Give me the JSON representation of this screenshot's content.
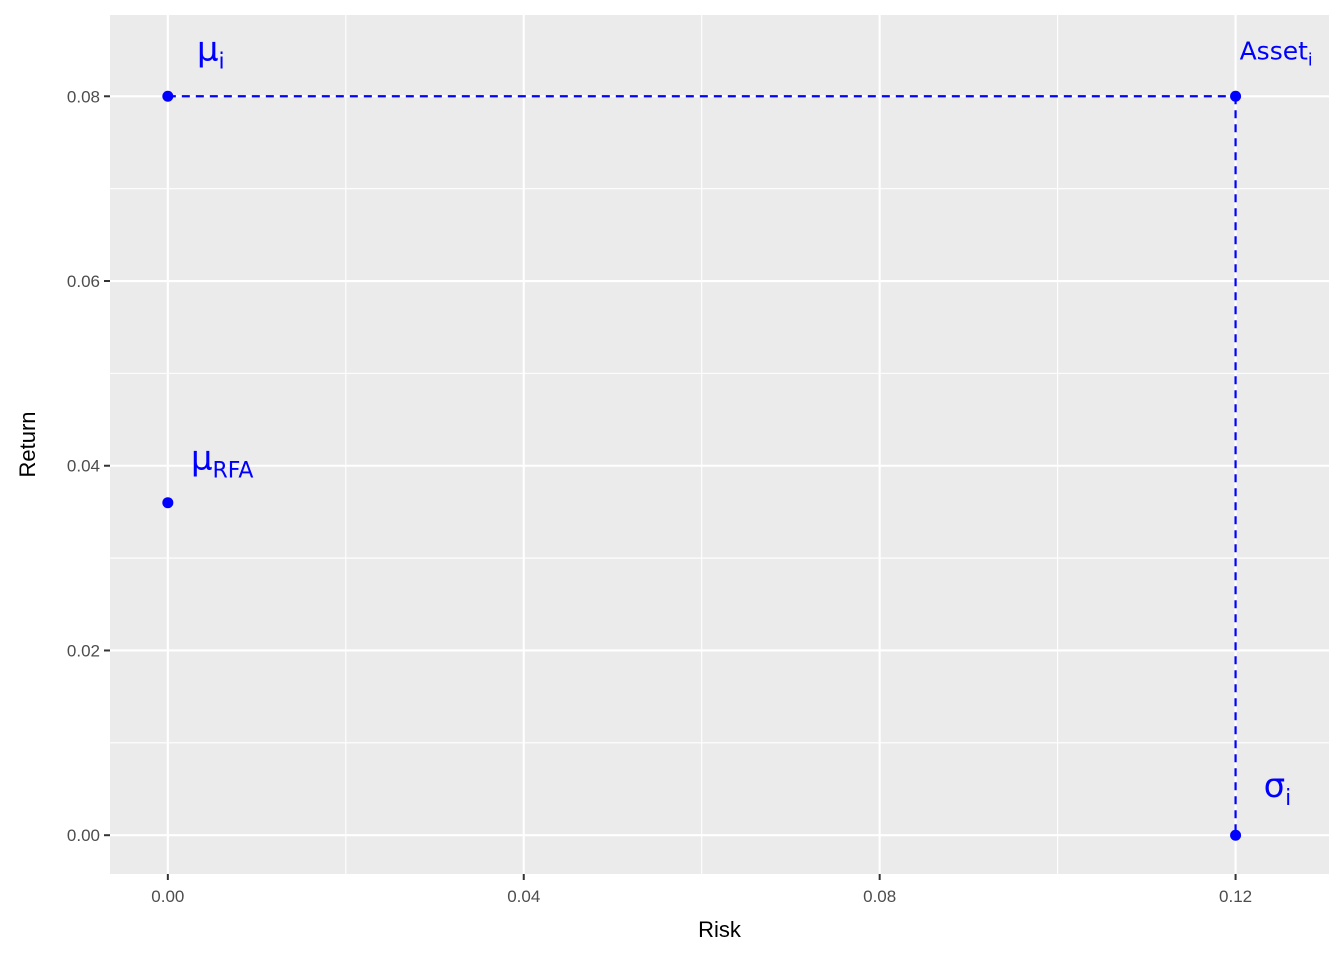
{
  "chart_data": {
    "type": "scatter",
    "xlabel": "Risk",
    "ylabel": "Return",
    "xlim": [
      -0.0065,
      0.1305
    ],
    "ylim": [
      -0.0042,
      0.0888
    ],
    "x_ticks": [
      0.0,
      0.04,
      0.08,
      0.12
    ],
    "x_tick_labels": [
      "0.00",
      "0.04",
      "0.08",
      "0.12"
    ],
    "y_ticks": [
      0.0,
      0.02,
      0.04,
      0.06,
      0.08
    ],
    "y_tick_labels": [
      "0.00",
      "0.02",
      "0.04",
      "0.06",
      "0.08"
    ],
    "grid": true,
    "color": "#0000ff",
    "background": "#ebebeb",
    "points": [
      {
        "x": 0.0,
        "y": 0.08,
        "label_base": "μ",
        "label_sub": "i"
      },
      {
        "x": 0.0,
        "y": 0.036,
        "label_base": "μ",
        "label_sub": "RFA"
      },
      {
        "x": 0.12,
        "y": 0.08,
        "label_base": "Asset",
        "label_sub": "i"
      },
      {
        "x": 0.12,
        "y": 0.0,
        "label_base": "σ",
        "label_sub": "i"
      }
    ],
    "dashed_lines": [
      {
        "x1": 0.0,
        "y1": 0.08,
        "x2": 0.12,
        "y2": 0.08
      },
      {
        "x1": 0.12,
        "y1": 0.08,
        "x2": 0.12,
        "y2": 0.0
      }
    ]
  }
}
